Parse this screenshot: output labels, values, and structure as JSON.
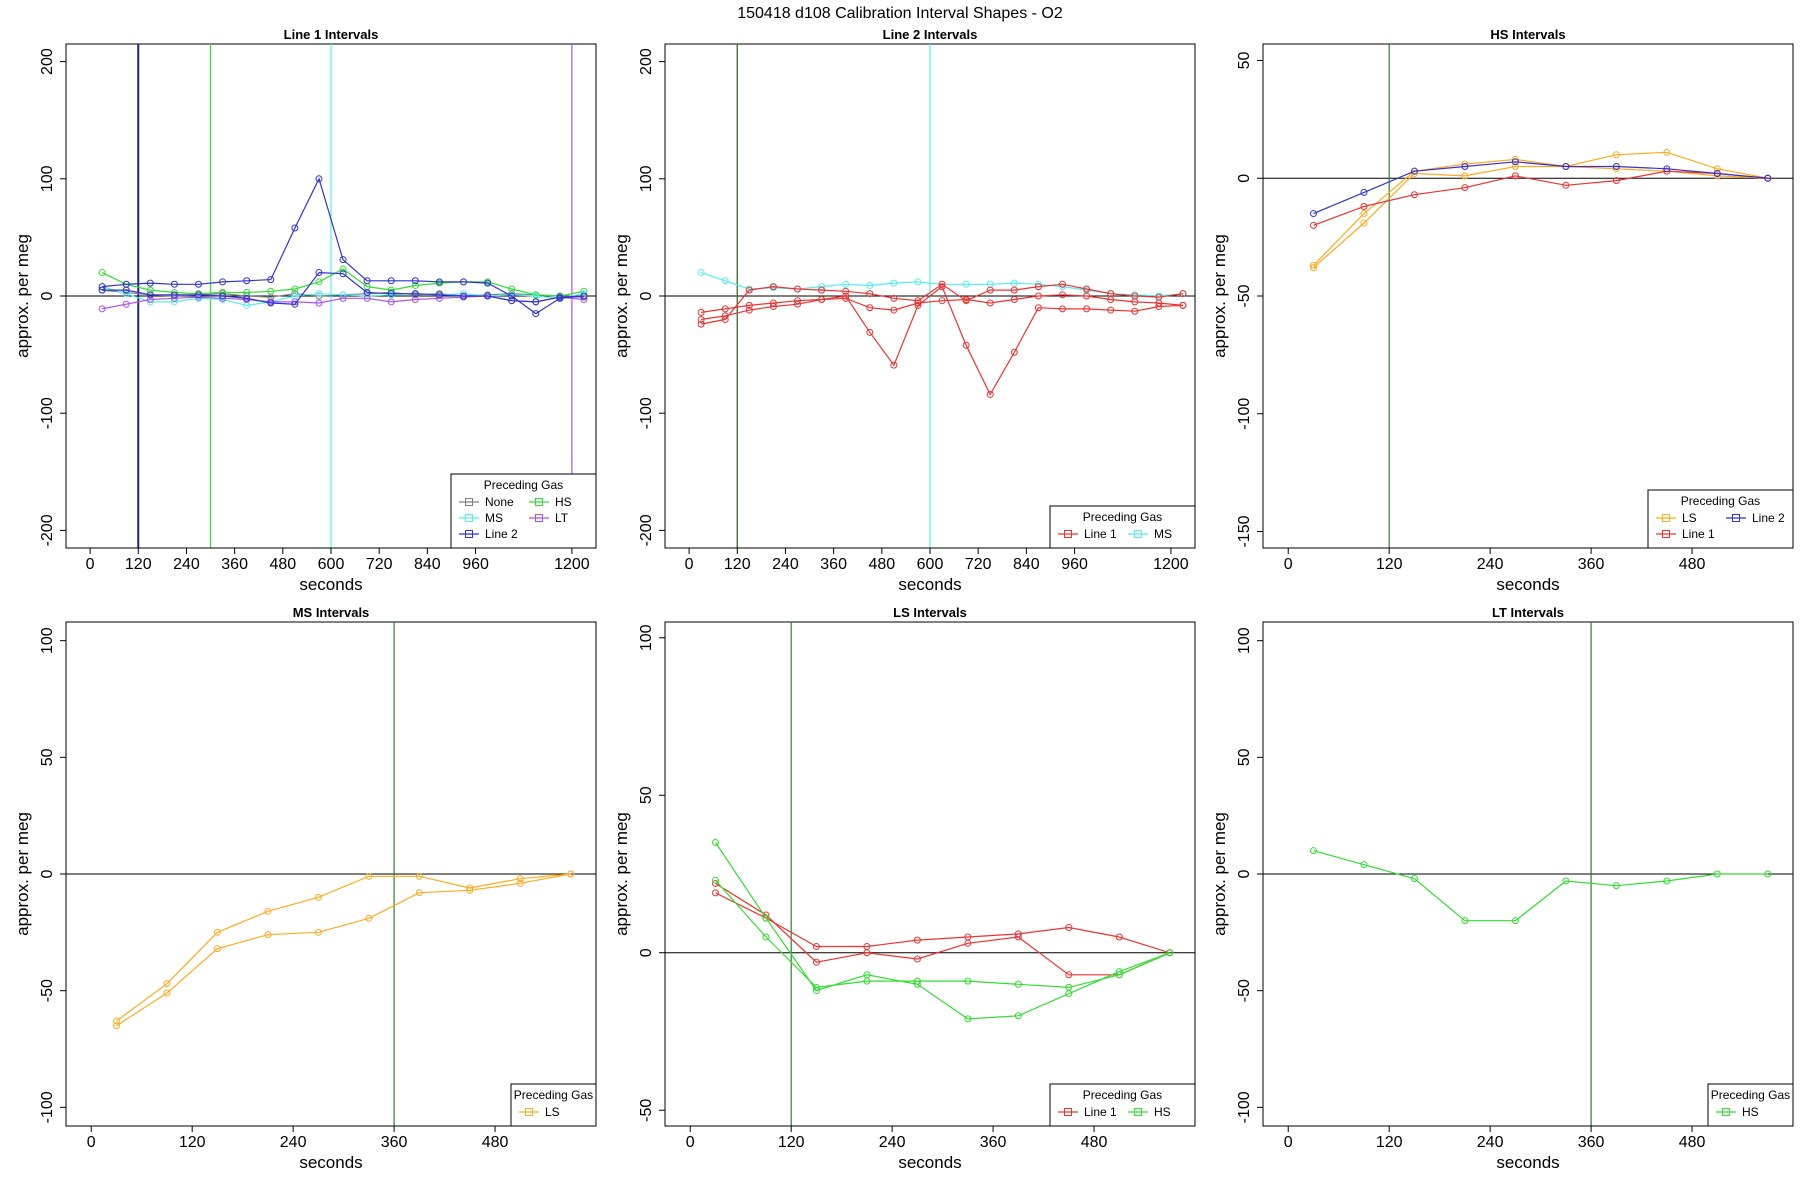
{
  "figure_title": "150418   d108   Calibration Interval Shapes - O2",
  "colors": {
    "None": "#808080",
    "HS": "#33dd33",
    "MS": "#55eeee",
    "LT": "#aa55ee",
    "Line 2": "#3333cc",
    "Line 1": "#ee3333",
    "LS": "#ffaa22",
    "Line 1 Intervals vline": "#1a237e"
  },
  "chart_data": [
    {
      "type": "line",
      "title": "Line 1 Intervals",
      "xlabel": "seconds",
      "ylabel": "approx. per meg",
      "xlim": [
        -60,
        1260
      ],
      "ylim": [
        -215,
        215
      ],
      "xticks": [
        0,
        120,
        240,
        360,
        480,
        600,
        720,
        840,
        960,
        1200
      ],
      "yticks": [
        -200,
        -100,
        0,
        100,
        200
      ],
      "hline": 0,
      "vlines": [
        {
          "x": 120,
          "series": "Line 2"
        },
        {
          "x": 300,
          "series": "HS"
        },
        {
          "x": 600,
          "series": "MS"
        },
        {
          "x": 1200,
          "series": "LT"
        }
      ],
      "legend": {
        "title": "Preceding Gas",
        "position": "bottom-right",
        "columns": 2,
        "entries": [
          "None",
          "HS",
          "MS",
          "LT",
          "Line 2"
        ]
      },
      "series": [
        {
          "name": "None",
          "x": [
            30,
            90,
            150,
            210,
            270,
            330,
            390,
            450,
            510,
            570,
            630,
            690,
            750,
            810,
            870,
            930,
            990,
            1050,
            1110,
            1170,
            1230
          ],
          "y": [
            5,
            3,
            1,
            0,
            1,
            2,
            0,
            -1,
            2,
            0,
            1,
            2,
            3,
            1,
            2,
            0,
            1,
            2,
            1,
            0,
            -1
          ]
        },
        {
          "name": "HS",
          "x": [
            30,
            90,
            150,
            210,
            270,
            330,
            390,
            450,
            510,
            570,
            630,
            690,
            750,
            810,
            870,
            930,
            990,
            1050,
            1110,
            1170,
            1230
          ],
          "y": [
            20,
            10,
            5,
            3,
            2,
            3,
            3,
            4,
            6,
            12,
            23,
            8,
            5,
            9,
            11,
            12,
            12,
            6,
            1,
            0,
            4
          ]
        },
        {
          "name": "MS",
          "x": [
            30,
            90,
            150,
            210,
            270,
            330,
            390,
            450,
            510,
            570,
            630,
            690,
            750,
            810,
            870,
            930,
            990,
            1050,
            1110,
            1170,
            1230
          ],
          "y": [
            8,
            2,
            -5,
            -5,
            -2,
            -3,
            -8,
            -5,
            0,
            2,
            1,
            0,
            1,
            2,
            1,
            2,
            0,
            1,
            0,
            -2,
            2
          ]
        },
        {
          "name": "LT",
          "x": [
            30,
            90,
            150,
            210,
            270,
            330,
            390,
            450,
            510,
            570,
            630,
            690,
            750,
            810,
            870,
            930,
            990,
            1050,
            1110,
            1170,
            1230
          ],
          "y": [
            -11,
            -7,
            -3,
            -2,
            -1,
            -2,
            -3,
            -5,
            -5,
            -6,
            -2,
            -2,
            -5,
            -3,
            -2,
            -1,
            0,
            -4,
            -5,
            -1,
            -3
          ]
        },
        {
          "name": "Line 2",
          "x": [
            30,
            90,
            150,
            210,
            270,
            330,
            390,
            450,
            510,
            570,
            630,
            690,
            750,
            810,
            870,
            930,
            990,
            1050,
            1110,
            1170,
            1230
          ],
          "y": [
            8,
            10,
            11,
            10,
            10,
            12,
            13,
            14,
            58,
            100,
            31,
            13,
            13,
            13,
            12,
            12,
            11,
            0,
            -15,
            -2,
            0
          ]
        },
        {
          "name": "Line 2",
          "x": [
            30,
            90,
            150,
            210,
            270,
            330,
            390,
            450,
            510,
            570,
            630,
            690,
            750,
            810,
            870,
            930,
            990,
            1050,
            1110,
            1170,
            1230
          ],
          "y": [
            5,
            5,
            1,
            1,
            1,
            0,
            -2,
            -6,
            -7,
            20,
            19,
            3,
            2,
            2,
            1,
            0,
            0,
            -4,
            -5,
            -1,
            0
          ]
        }
      ]
    },
    {
      "type": "line",
      "title": "Line 2 Intervals",
      "xlabel": "seconds",
      "ylabel": "approx. per meg",
      "xlim": [
        -60,
        1260
      ],
      "ylim": [
        -215,
        215
      ],
      "xticks": [
        0,
        120,
        240,
        360,
        480,
        600,
        720,
        840,
        960,
        1200
      ],
      "yticks": [
        -200,
        -100,
        0,
        100,
        200
      ],
      "hline": 0,
      "vlines": [
        {
          "x": 120,
          "series": "Line 1"
        },
        {
          "x": 120,
          "series": "HS",
          "note": "overlap"
        },
        {
          "x": 600,
          "series": "MS"
        }
      ],
      "legend": {
        "title": "Preceding Gas",
        "position": "bottom-right",
        "columns": 2,
        "entries": [
          "Line 1",
          "MS"
        ]
      },
      "series": [
        {
          "name": "MS",
          "x": [
            30,
            90,
            150,
            210,
            270,
            330,
            390,
            450,
            510,
            570,
            630,
            690,
            750,
            810,
            870,
            930,
            990,
            1050,
            1110,
            1170,
            1230
          ],
          "y": [
            20,
            13,
            6,
            7,
            6,
            8,
            10,
            9,
            11,
            12,
            10,
            10,
            10,
            11,
            10,
            8,
            5,
            2,
            1,
            0,
            2
          ]
        },
        {
          "name": "Line 1",
          "x": [
            30,
            90,
            150,
            210,
            270,
            330,
            390,
            450,
            510,
            570,
            630,
            690,
            750,
            810,
            870,
            930,
            990,
            1050,
            1110,
            1170,
            1230
          ],
          "y": [
            -14,
            -11,
            -8,
            -6,
            -4,
            -3,
            0,
            -31,
            -59,
            -8,
            8,
            -42,
            -84,
            -48,
            -10,
            -11,
            -11,
            -12,
            -13,
            -9,
            -8
          ]
        },
        {
          "name": "Line 1",
          "x": [
            30,
            90,
            150,
            210,
            270,
            330,
            390,
            450,
            510,
            570,
            630,
            690,
            750,
            810,
            870,
            930,
            990,
            1050,
            1110,
            1170,
            1230
          ],
          "y": [
            -20,
            -17,
            -12,
            -9,
            -7,
            -3,
            -2,
            -10,
            -12,
            -6,
            -4,
            -3,
            -6,
            -3,
            0,
            1,
            0,
            -3,
            -5,
            -6,
            -8
          ]
        },
        {
          "name": "Line 1",
          "x": [
            30,
            90,
            150,
            210,
            270,
            330,
            390,
            450,
            510,
            570,
            630,
            690,
            750,
            810,
            870,
            930,
            990,
            1050,
            1110,
            1170,
            1230
          ],
          "y": [
            -24,
            -20,
            5,
            8,
            6,
            5,
            4,
            2,
            -2,
            -4,
            10,
            -4,
            5,
            5,
            8,
            10,
            6,
            2,
            0,
            -1,
            2
          ]
        }
      ]
    },
    {
      "type": "line",
      "title": "HS Intervals",
      "xlabel": "seconds",
      "ylabel": "approx. per meg",
      "xlim": [
        -30,
        600
      ],
      "ylim": [
        -157,
        57
      ],
      "xticks": [
        0,
        120,
        240,
        360,
        480
      ],
      "yticks": [
        -150,
        -100,
        -50,
        0,
        50
      ],
      "hline": 0,
      "vlines": [
        {
          "x": 120,
          "series": "HS"
        }
      ],
      "legend": {
        "title": "Preceding Gas",
        "position": "bottom-right",
        "columns": 2,
        "entries": [
          "LS",
          "Line 2",
          "Line 1"
        ]
      },
      "series": [
        {
          "name": "LS",
          "x": [
            30,
            90,
            150,
            210,
            270,
            330,
            390,
            450,
            510,
            570
          ],
          "y": [
            -37,
            -15,
            3,
            6,
            8,
            5,
            10,
            11,
            4,
            0
          ]
        },
        {
          "name": "LS",
          "x": [
            30,
            90,
            150,
            210,
            270,
            330,
            390,
            450,
            510,
            570
          ],
          "y": [
            -38,
            -19,
            2,
            1,
            5,
            5,
            4,
            3,
            1,
            0
          ]
        },
        {
          "name": "Line 1",
          "x": [
            30,
            90,
            150,
            210,
            270,
            330,
            390,
            450,
            510,
            570
          ],
          "y": [
            -20,
            -12,
            -7,
            -4,
            1,
            -3,
            -1,
            3,
            2,
            0
          ]
        },
        {
          "name": "Line 2",
          "x": [
            30,
            90,
            150,
            210,
            270,
            330,
            390,
            450,
            510,
            570
          ],
          "y": [
            -15,
            -6,
            3,
            5,
            7,
            5,
            5,
            4,
            2,
            0
          ]
        }
      ]
    },
    {
      "type": "line",
      "title": "MS Intervals",
      "xlabel": "seconds",
      "ylabel": "approx. per meg",
      "xlim": [
        -30,
        600
      ],
      "ylim": [
        -108,
        108
      ],
      "xticks": [
        0,
        120,
        240,
        360,
        480
      ],
      "yticks": [
        -100,
        -50,
        0,
        50,
        100
      ],
      "hline": 0,
      "vlines": [
        {
          "x": 360,
          "series": "HS"
        }
      ],
      "legend": {
        "title": "Preceding Gas",
        "position": "bottom-right",
        "columns": 1,
        "entries": [
          "LS"
        ]
      },
      "series": [
        {
          "name": "LS",
          "x": [
            30,
            90,
            150,
            210,
            270,
            330,
            390,
            450,
            510,
            570
          ],
          "y": [
            -63,
            -47,
            -25,
            -16,
            -10,
            -1,
            -1,
            -6,
            -2,
            0
          ]
        },
        {
          "name": "LS",
          "x": [
            30,
            90,
            150,
            210,
            270,
            330,
            390,
            450,
            510,
            570
          ],
          "y": [
            -65,
            -51,
            -32,
            -26,
            -25,
            -19,
            -8,
            -7,
            -4,
            0
          ]
        }
      ]
    },
    {
      "type": "line",
      "title": "LS Intervals",
      "xlabel": "seconds",
      "ylabel": "approx. per meg",
      "xlim": [
        -30,
        600
      ],
      "ylim": [
        -55,
        105
      ],
      "xticks": [
        0,
        120,
        240,
        360,
        480
      ],
      "yticks": [
        -50,
        0,
        50,
        100
      ],
      "hline": 0,
      "vlines": [
        {
          "x": 120,
          "series": "HS"
        }
      ],
      "legend": {
        "title": "Preceding Gas",
        "position": "bottom-right",
        "columns": 2,
        "entries": [
          "Line 1",
          "HS"
        ]
      },
      "series": [
        {
          "name": "Line 1",
          "x": [
            30,
            90,
            150,
            210,
            270,
            330,
            390,
            450,
            510,
            570
          ],
          "y": [
            22,
            12,
            -3,
            0,
            -2,
            3,
            5,
            -7,
            -7,
            0
          ]
        },
        {
          "name": "Line 1",
          "x": [
            30,
            90,
            150,
            210,
            270,
            330,
            390,
            450,
            510,
            570
          ],
          "y": [
            19,
            11,
            2,
            2,
            4,
            5,
            6,
            8,
            5,
            0
          ]
        },
        {
          "name": "HS",
          "x": [
            30,
            90,
            150,
            210,
            270,
            330,
            390,
            450,
            510,
            570
          ],
          "y": [
            35,
            11,
            -12,
            -7,
            -10,
            -21,
            -20,
            -13,
            -6,
            0
          ]
        },
        {
          "name": "HS",
          "x": [
            30,
            90,
            150,
            210,
            270,
            330,
            390,
            450,
            510,
            570
          ],
          "y": [
            23,
            5,
            -11,
            -9,
            -9,
            -9,
            -10,
            -11,
            -7,
            0
          ]
        }
      ]
    },
    {
      "type": "line",
      "title": "LT Intervals",
      "xlabel": "seconds",
      "ylabel": "approx. per meg",
      "xlim": [
        -30,
        600
      ],
      "ylim": [
        -108,
        108
      ],
      "xticks": [
        0,
        120,
        240,
        360,
        480
      ],
      "yticks": [
        -100,
        -50,
        0,
        50,
        100
      ],
      "hline": 0,
      "vlines": [
        {
          "x": 360,
          "series": "HS"
        }
      ],
      "legend": {
        "title": "Preceding Gas",
        "position": "bottom-right",
        "columns": 1,
        "entries": [
          "HS"
        ]
      },
      "series": [
        {
          "name": "HS",
          "x": [
            30,
            90,
            150,
            210,
            270,
            330,
            390,
            450,
            510,
            570
          ],
          "y": [
            10,
            4,
            -2,
            -20,
            -20,
            -3,
            -5,
            -3,
            0,
            0
          ]
        }
      ]
    }
  ]
}
